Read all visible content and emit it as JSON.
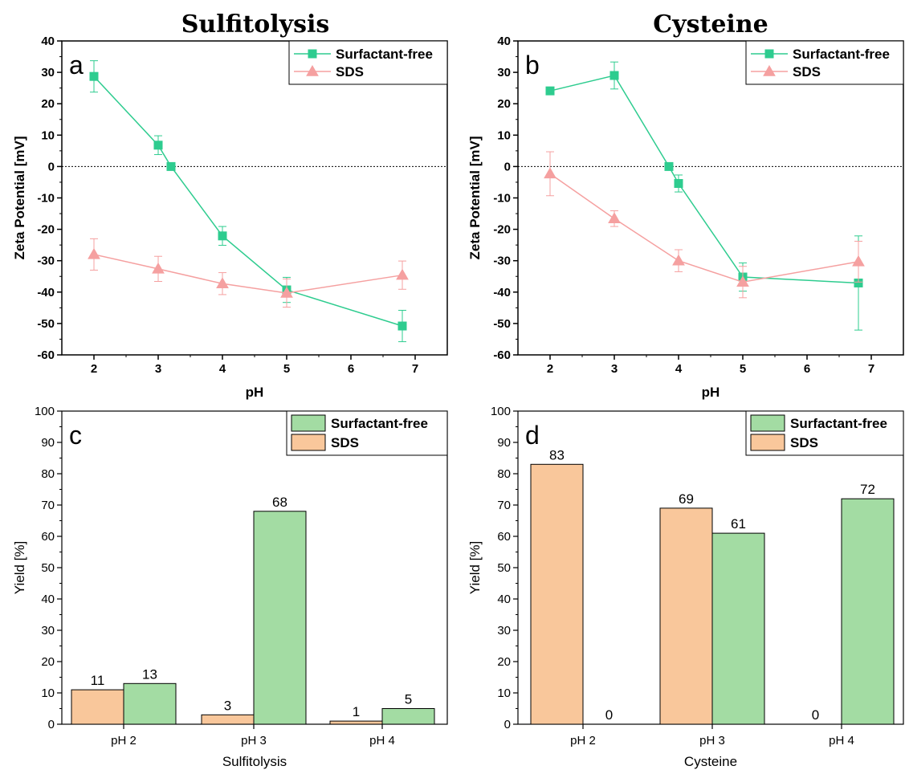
{
  "chart_data": [
    {
      "type": "line",
      "panel": "a",
      "title": "Sulfitolysis",
      "xlabel": "pH",
      "ylabel": "Zeta Potential [mV]",
      "xlim": [
        1.5,
        7.5
      ],
      "ylim": [
        -60,
        40
      ],
      "xticks": [
        2,
        3,
        4,
        5,
        6,
        7
      ],
      "yticks": [
        -60,
        -50,
        -40,
        -30,
        -20,
        -10,
        0,
        10,
        20,
        30,
        40
      ],
      "zero_line": true,
      "legend_position": "top-right",
      "series": [
        {
          "name": "Surfactant-free",
          "color": "#2ecc8f",
          "marker": "square",
          "x": [
            2,
            3,
            3.2,
            4,
            5,
            6.8
          ],
          "y": [
            28.7,
            6.8,
            0,
            -22.1,
            -39.3,
            -50.8
          ],
          "err": [
            5,
            3,
            0,
            3,
            4,
            5
          ]
        },
        {
          "name": "SDS",
          "color": "#f5a0a0",
          "marker": "triangle",
          "x": [
            2,
            3,
            4,
            5,
            6.8
          ],
          "y": [
            -28,
            -32.6,
            -37.3,
            -40.3,
            -34.6
          ],
          "err": [
            5,
            4,
            3.5,
            4.5,
            4.5
          ]
        }
      ]
    },
    {
      "type": "line",
      "panel": "b",
      "title": "Cysteine",
      "xlabel": "pH",
      "ylabel": "Zeta Potential [mV]",
      "xlim": [
        1.5,
        7.5
      ],
      "ylim": [
        -60,
        40
      ],
      "xticks": [
        2,
        3,
        4,
        5,
        6,
        7
      ],
      "yticks": [
        -60,
        -50,
        -40,
        -30,
        -20,
        -10,
        0,
        10,
        20,
        30,
        40
      ],
      "zero_line": true,
      "legend_position": "top-right",
      "series": [
        {
          "name": "Surfactant-free",
          "color": "#2ecc8f",
          "marker": "square",
          "x": [
            2,
            3,
            3.85,
            4,
            5,
            6.8
          ],
          "y": [
            24.1,
            29,
            0,
            -5.4,
            -35.2,
            -37.1
          ],
          "err": [
            0,
            4.3,
            0,
            2.7,
            4.5,
            15
          ]
        },
        {
          "name": "SDS",
          "color": "#f5a0a0",
          "marker": "triangle",
          "x": [
            2,
            3,
            4,
            5,
            6.8
          ],
          "y": [
            -2.3,
            -16.6,
            -30,
            -36.8,
            -30.3
          ],
          "err": [
            7,
            2.5,
            3.5,
            5,
            6.5
          ]
        }
      ]
    },
    {
      "type": "bar",
      "panel": "c",
      "xlabel": "Sulfitolysis",
      "ylabel": "Yield [%]",
      "ylim": [
        0,
        100
      ],
      "yticks": [
        0,
        10,
        20,
        30,
        40,
        50,
        60,
        70,
        80,
        90,
        100
      ],
      "categories": [
        "pH 2",
        "pH 3",
        "pH 4"
      ],
      "legend_position": "top-right",
      "series": [
        {
          "name": "SDS",
          "color": "#f9c79b",
          "values": [
            11,
            3,
            1
          ]
        },
        {
          "name": "Surfactant-free",
          "color": "#a3dca3",
          "values": [
            13,
            68,
            5
          ]
        }
      ],
      "legend_order": [
        "Surfactant-free",
        "SDS"
      ]
    },
    {
      "type": "bar",
      "panel": "d",
      "xlabel": "Cysteine",
      "ylabel": "Yield [%]",
      "ylim": [
        0,
        100
      ],
      "yticks": [
        0,
        10,
        20,
        30,
        40,
        50,
        60,
        70,
        80,
        90,
        100
      ],
      "categories": [
        "pH 2",
        "pH 3",
        "pH 4"
      ],
      "legend_position": "top-right",
      "series": [
        {
          "name": "SDS",
          "color": "#f9c79b",
          "values": [
            83,
            69,
            0
          ]
        },
        {
          "name": "Surfactant-free",
          "color": "#a3dca3",
          "values": [
            0,
            61,
            72
          ]
        }
      ],
      "legend_order": [
        "Surfactant-free",
        "SDS"
      ]
    }
  ]
}
